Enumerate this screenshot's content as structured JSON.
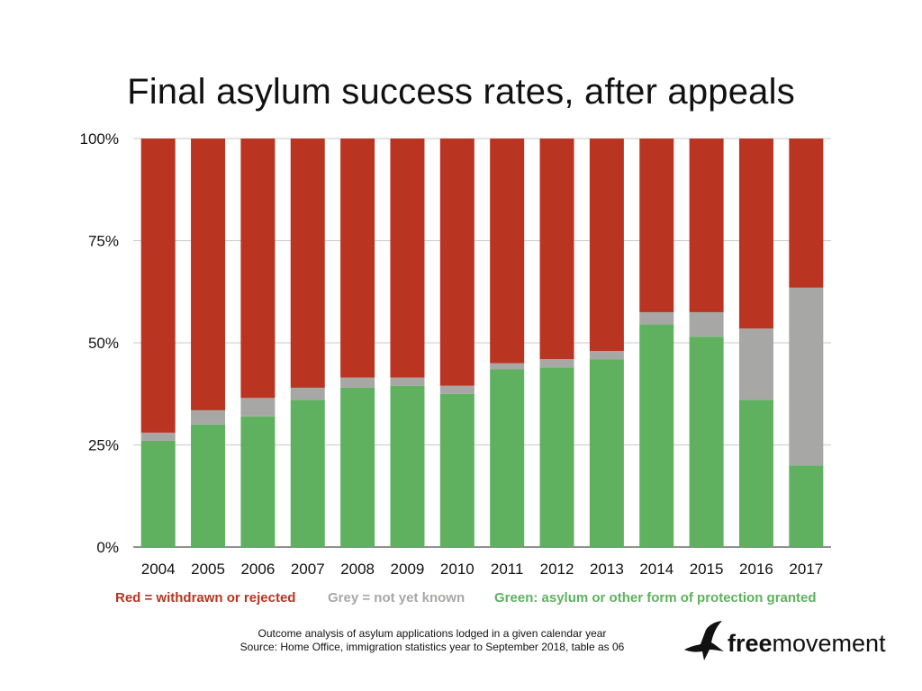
{
  "title": "Final asylum success rates, after appeals",
  "legend": {
    "red": "Red = withdrawn or rejected",
    "grey": "Grey = not yet known",
    "green": "Green: asylum or other form of protection granted"
  },
  "source_line1": "Outcome analysis of asylum applications lodged in a given calendar year",
  "source_line2": "Source: Home Office, immigration statistics year to September 2018, table as 06",
  "logo": {
    "bold": "free",
    "rest": "movement",
    "icon": "flying-bird-icon"
  },
  "colors": {
    "red": "#b93522",
    "grey": "#a7a8a6",
    "green": "#5fb160",
    "grid": "#c8c8c8"
  },
  "chart_data": {
    "type": "bar",
    "stacked": true,
    "title": "Final asylum success rates, after appeals",
    "categories": [
      "2004",
      "2005",
      "2006",
      "2007",
      "2008",
      "2009",
      "2010",
      "2011",
      "2012",
      "2013",
      "2014",
      "2015",
      "2016",
      "2017"
    ],
    "series": [
      {
        "name": "Green: asylum or other form of protection granted",
        "color": "#5fb160",
        "values": [
          26,
          30,
          32,
          36,
          39,
          39.5,
          37.5,
          43.5,
          44,
          46,
          54.5,
          51.5,
          36,
          20
        ]
      },
      {
        "name": "Grey = not yet known",
        "color": "#a7a8a6",
        "values": [
          2,
          3.5,
          4.5,
          3,
          2.5,
          2,
          2,
          1.5,
          2,
          2,
          3,
          6,
          17.5,
          43.5
        ]
      },
      {
        "name": "Red = withdrawn or rejected",
        "color": "#b93522",
        "values": [
          72,
          66.5,
          63.5,
          61,
          58.5,
          58.5,
          60.5,
          55,
          54,
          52,
          42.5,
          42.5,
          46.5,
          36.5
        ]
      }
    ],
    "yticks": [
      "0%",
      "25%",
      "50%",
      "75%",
      "100%"
    ],
    "ytick_values": [
      0,
      25,
      50,
      75,
      100
    ],
    "ylim": [
      0,
      100
    ],
    "xlabel": "",
    "ylabel": "",
    "grid": true,
    "legend_position": "bottom"
  }
}
